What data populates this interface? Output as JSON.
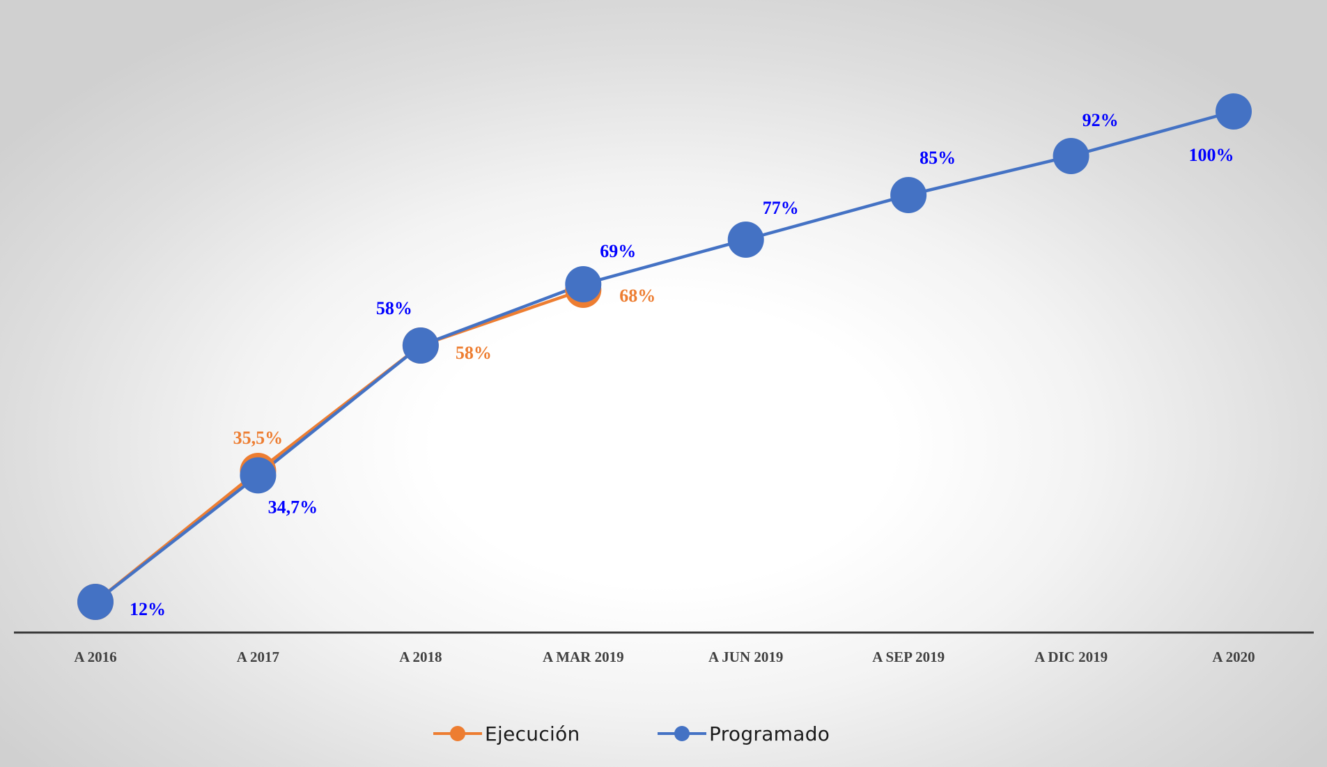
{
  "chart_data": {
    "type": "line",
    "title": "",
    "xlabel": "",
    "ylabel": "",
    "ylim": [
      0,
      105
    ],
    "grid": false,
    "legend_position": "bottom",
    "categories": [
      "A 2016",
      "A 2017",
      "A 2018",
      "A MAR 2019",
      "A JUN 2019",
      "A SEP 2019",
      "A DIC 2019",
      "A 2020"
    ],
    "series": [
      {
        "name": "Ejecución",
        "color": "#ED7D31",
        "values": [
          12,
          35.5,
          58,
          68,
          null,
          null,
          null,
          null
        ],
        "labels": [
          "",
          "35,5%",
          "58%",
          "68%",
          "",
          "",
          "",
          ""
        ]
      },
      {
        "name": "Programado",
        "color": "#4472C4",
        "values": [
          12,
          34.7,
          58,
          69,
          77,
          85,
          92,
          100
        ],
        "labels": [
          "12%",
          "34,7%",
          "58%",
          "69%",
          "77%",
          "85%",
          "92%",
          "100%"
        ]
      }
    ],
    "label_colors": {
      "Ejecución": "#ED7D31",
      "Programado": "#0000FF"
    }
  }
}
